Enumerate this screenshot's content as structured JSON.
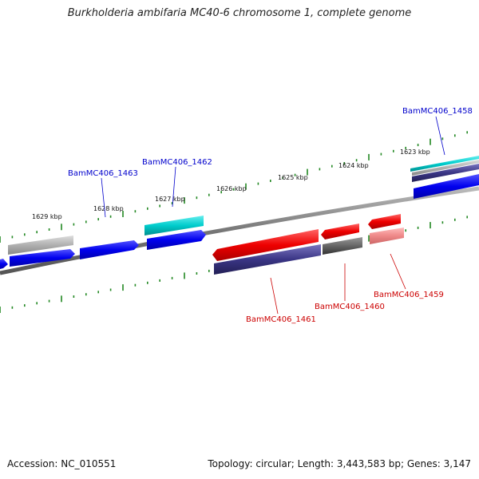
{
  "title": "Burkholderia ambifaria MC40-6 chromosome 1, complete genome",
  "footer": {
    "accession": "Accession: NC_010551",
    "summary": "Topology: circular; Length: 3,443,583 bp; Genes: 3,147"
  },
  "ruler_ticks": [
    "1629 kbp",
    "1628 kbp",
    "1627 kbp",
    "1626 kbp",
    "1625 kbp",
    "1624 kbp",
    "1623 kbp"
  ],
  "gene_labels": [
    {
      "text": "BamMC406_1458",
      "strand": "forward",
      "color": "#0000cc"
    },
    {
      "text": "BamMC406_1462",
      "strand": "forward",
      "color": "#0000cc"
    },
    {
      "text": "BamMC406_1463",
      "strand": "forward",
      "color": "#0000cc"
    },
    {
      "text": "BamMC406_1459",
      "strand": "reverse",
      "color": "#cc0000"
    },
    {
      "text": "BamMC406_1460",
      "strand": "reverse",
      "color": "#cc0000"
    },
    {
      "text": "BamMC406_1461",
      "strand": "reverse",
      "color": "#cc0000"
    }
  ],
  "colors": {
    "forward_cds": "#0000ee",
    "reverse_cds": "#ee0000",
    "cyan_feature": "#00bbbb",
    "grey_feature": "#aaaaaa",
    "dark_grey_feature": "#555555",
    "purple_feature": "#3a3585",
    "pink_feature": "#ee8888",
    "backbone": "#777777",
    "tick": "#228822"
  }
}
